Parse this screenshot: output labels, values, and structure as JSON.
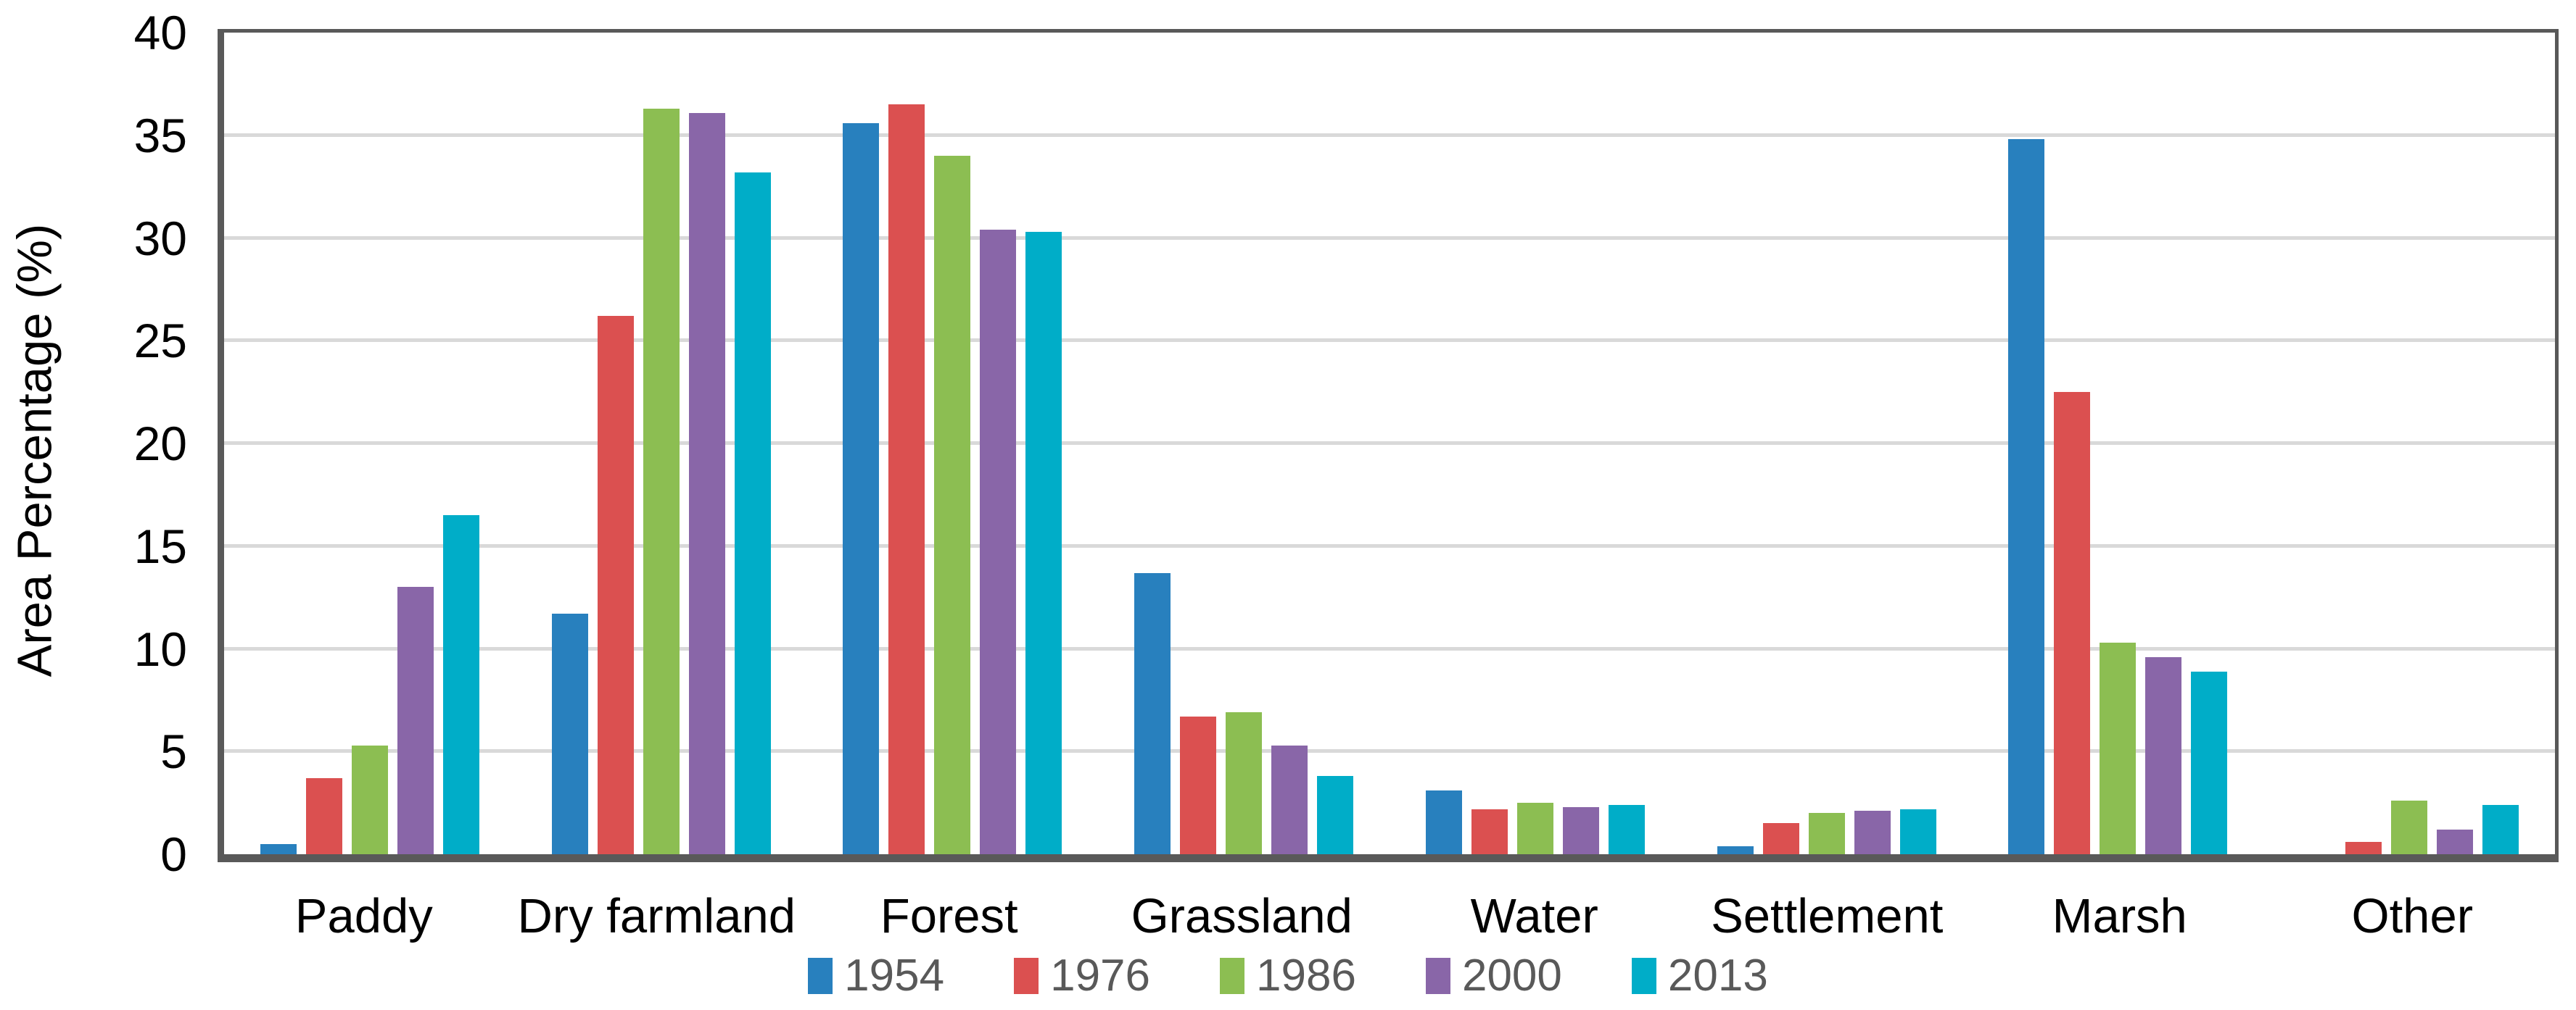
{
  "chart_data": {
    "type": "bar",
    "title": "",
    "xlabel": "",
    "ylabel": "Area Percentage (%)",
    "ylim": [
      0,
      40
    ],
    "yticks": [
      40,
      35,
      30,
      25,
      20,
      15,
      10,
      5,
      0
    ],
    "grid": "horizontal",
    "legend_position": "bottom-center",
    "categories": [
      "Paddy",
      "Dry farmland",
      "Forest",
      "Grassland",
      "Water",
      "Settlement",
      "Marsh",
      "Other"
    ],
    "series": [
      {
        "name": "1954",
        "color": "#2880BE",
        "values": [
          0.5,
          11.7,
          35.6,
          13.7,
          3.1,
          0.4,
          34.8,
          0
        ]
      },
      {
        "name": "1976",
        "color": "#DB5050",
        "values": [
          3.7,
          26.2,
          36.5,
          6.7,
          2.2,
          1.5,
          22.5,
          0.6
        ]
      },
      {
        "name": "1986",
        "color": "#8CBE52",
        "values": [
          5.3,
          36.3,
          34.0,
          6.9,
          2.5,
          2.0,
          10.3,
          2.6
        ]
      },
      {
        "name": "2000",
        "color": "#8966A8",
        "values": [
          13.0,
          36.1,
          30.4,
          5.3,
          2.3,
          2.1,
          9.6,
          1.2
        ]
      },
      {
        "name": "2013",
        "color": "#00ADC8",
        "values": [
          16.5,
          33.2,
          30.3,
          3.8,
          2.4,
          2.2,
          8.9,
          2.4
        ]
      }
    ]
  },
  "styles": {
    "axis_color": "#595959",
    "grid_color": "#D9D9D9",
    "legend_text_color": "#595959",
    "background": "#FFFFFF"
  }
}
